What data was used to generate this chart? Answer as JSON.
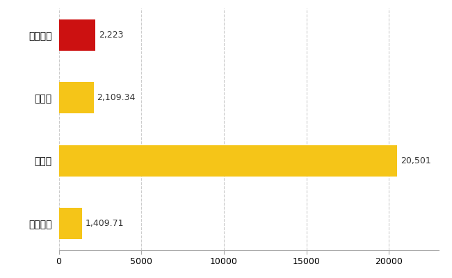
{
  "categories": [
    "新発田市",
    "県平均",
    "県最大",
    "全国平均"
  ],
  "values": [
    2223,
    2109.34,
    20501,
    1409.71
  ],
  "labels": [
    "2,223",
    "2,109.34",
    "20,501",
    "1,409.71"
  ],
  "bar_colors": [
    "#cc1111",
    "#f5c518",
    "#f5c518",
    "#f5c518"
  ],
  "background_color": "#ffffff",
  "grid_color": "#cccccc",
  "xlim": [
    0,
    23000
  ],
  "xticks": [
    0,
    5000,
    10000,
    15000,
    20000
  ],
  "label_fontsize": 10,
  "tick_fontsize": 9,
  "bar_height": 0.5
}
